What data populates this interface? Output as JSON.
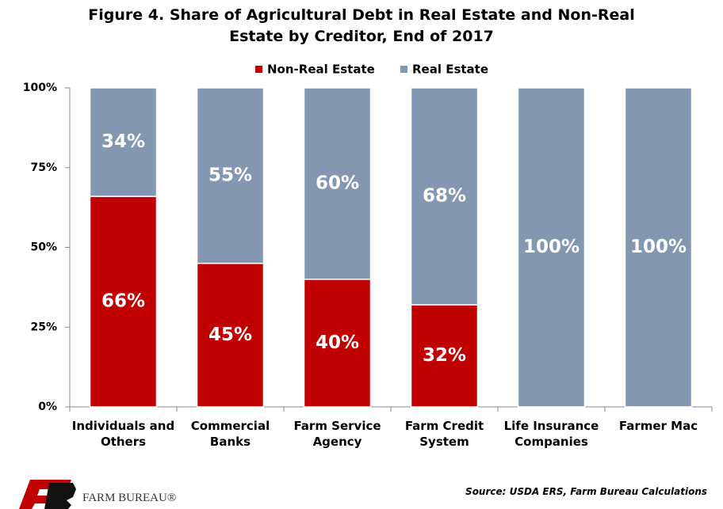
{
  "chart_data": {
    "type": "stacked_bar",
    "title": "Figure 4. Share of Agricultural Debt in Real Estate and Non-Real Estate by Creditor, End of 2017",
    "categories": [
      "Individuals and Others",
      "Commercial Banks",
      "Farm Service Agency",
      "Farm Credit System",
      "Life Insurance Companies",
      "Farmer Mac"
    ],
    "series": [
      {
        "name": "Non-Real Estate",
        "color": "#c00000",
        "values": [
          66,
          45,
          40,
          32,
          0,
          0
        ],
        "value_labels": [
          "66%",
          "45%",
          "40%",
          "32%",
          null,
          null
        ]
      },
      {
        "name": "Real Estate",
        "color": "#8497b0",
        "values": [
          34,
          55,
          60,
          68,
          100,
          100
        ],
        "value_labels": [
          "34%",
          "55%",
          "60%",
          "68%",
          "100%",
          "100%"
        ]
      }
    ],
    "ylim": [
      0,
      100
    ],
    "yticks": [
      {
        "value": 0,
        "label": "0%"
      },
      {
        "value": 25,
        "label": "25%"
      },
      {
        "value": 50,
        "label": "50%"
      },
      {
        "value": 75,
        "label": "75%"
      },
      {
        "value": 100,
        "label": "100%"
      }
    ],
    "legend": "top",
    "source": "Source: USDA ERS, Farm Bureau Calculations"
  },
  "logo_text": "FARM BUREAU®"
}
